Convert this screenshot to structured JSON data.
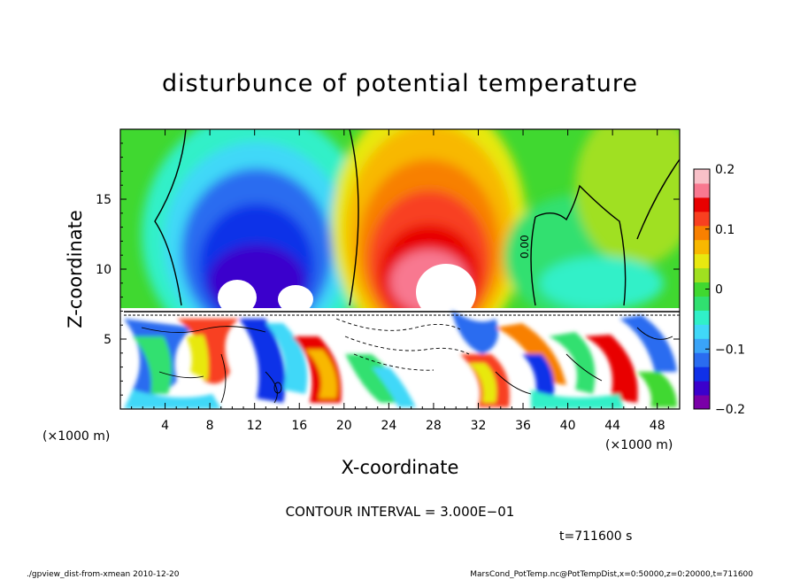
{
  "chart_data": {
    "type": "heatmap",
    "title": "disturbunce of potential temperature",
    "xlabel": "X-coordinate",
    "ylabel": "Z-coordinate",
    "x_unit": "(×1000 m)",
    "y_unit": "(×1000 m)",
    "xlim": [
      0,
      50
    ],
    "ylim": [
      0,
      20
    ],
    "x_ticks": [
      "4",
      "8",
      "12",
      "16",
      "20",
      "24",
      "28",
      "32",
      "36",
      "40",
      "44",
      "48"
    ],
    "y_ticks": [
      "5",
      "10",
      "15"
    ],
    "colorbar": {
      "range": [
        -0.2,
        0.2
      ],
      "tick_labels": [
        "0.2",
        "0.1",
        "0",
        "−0.1",
        "−0.2"
      ],
      "colors": [
        "#7a00a8",
        "#3b00cc",
        "#1030e8",
        "#2a6cf0",
        "#3aa4f8",
        "#40d8f8",
        "#30f0c8",
        "#30e070",
        "#40d830",
        "#a0e020",
        "#e8e810",
        "#f8b800",
        "#f88000",
        "#f84020",
        "#e80000",
        "#f87890",
        "#f8c0c8"
      ]
    },
    "contour_label": "0.00",
    "contour_interval_text": "CONTOUR INTERVAL = 3.000E−01",
    "time_text": "t=711600  s"
  },
  "footer": {
    "left": "./gpview_dist-from-xmean  2010-12-20",
    "right": "MarsCond_PotTemp.nc@PotTempDist,x=0:50000,z=0:20000,t=711600"
  }
}
